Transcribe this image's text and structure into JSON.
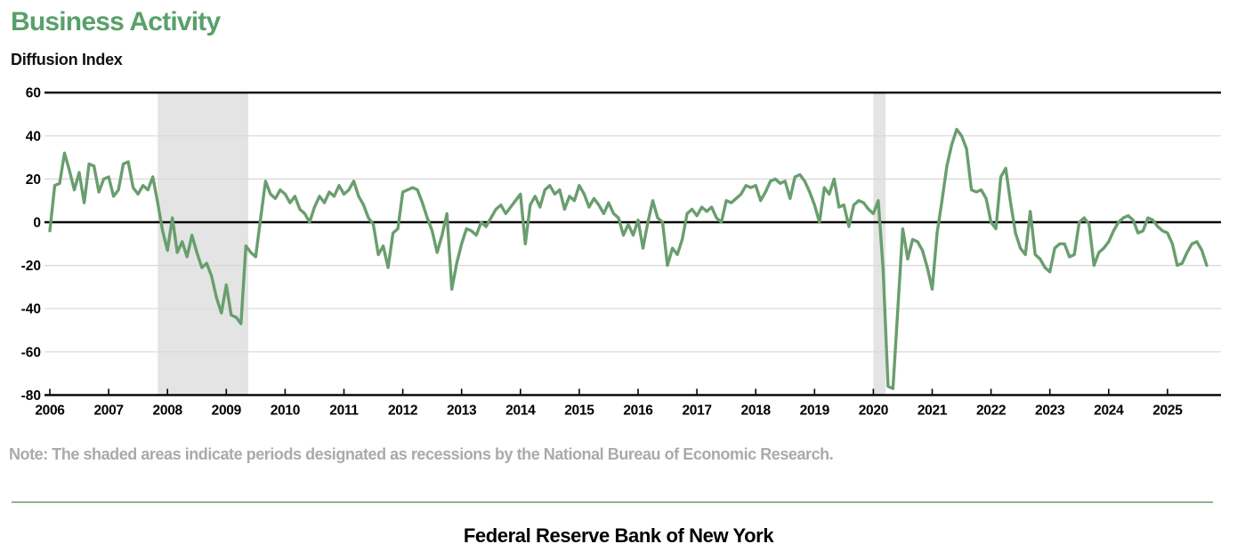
{
  "header": {
    "title": "Business Activity",
    "subtitle": "Diffusion Index"
  },
  "note": {
    "text": "Note: The shaded areas indicate periods designated as recessions by the National Bureau of Economic Research."
  },
  "footer": {
    "text": "Federal Reserve Bank of New York"
  },
  "chart_data": {
    "type": "line",
    "title": "Business Activity",
    "ylabel": "Diffusion Index",
    "frequency": "monthly",
    "x_start": "2006-01",
    "x_end": "2025-09",
    "ylim": [
      -80,
      60
    ],
    "y_ticks": [
      60,
      40,
      20,
      0,
      -20,
      -40,
      -60,
      -80
    ],
    "x_tick_years": [
      "2006",
      "2007",
      "2008",
      "2009",
      "2010",
      "2011",
      "2012",
      "2013",
      "2014",
      "2015",
      "2016",
      "2017",
      "2018",
      "2019",
      "2020",
      "2021",
      "2022",
      "2023",
      "2024",
      "2025"
    ],
    "grid": true,
    "legend": "none",
    "line_color": "#699e6e",
    "recession_band_color": "#e4e4e4",
    "grid_color": "#d8d8d8",
    "axis_color": "#000000",
    "recessions": [
      {
        "start": "2007-12",
        "end": "2009-06"
      },
      {
        "start": "2020-02",
        "end": "2020-04"
      }
    ],
    "values": [
      -4,
      17,
      18,
      32,
      24,
      15,
      23,
      9,
      27,
      26,
      14,
      20,
      21,
      12,
      15,
      27,
      28,
      16,
      13,
      17,
      15,
      21,
      9,
      -4,
      -13,
      2,
      -14,
      -9,
      -16,
      -6,
      -14,
      -21,
      -19,
      -25,
      -35,
      -42,
      -29,
      -43,
      -44,
      -47,
      -11,
      -14,
      -16,
      2,
      19,
      13,
      11,
      15,
      13,
      9,
      12,
      6,
      4,
      0,
      7,
      12,
      9,
      14,
      12,
      17,
      13,
      15,
      19,
      12,
      8,
      2,
      -1,
      -15,
      -11,
      -21,
      -5,
      -3,
      14,
      15,
      16,
      15,
      9,
      2,
      -4,
      -14,
      -6,
      4,
      -31,
      -19,
      -10,
      -3,
      -4,
      -6,
      0,
      -2,
      2,
      6,
      8,
      4,
      7,
      10,
      13,
      -10,
      8,
      12,
      7,
      15,
      17,
      13,
      15,
      6,
      12,
      10,
      17,
      13,
      7,
      11,
      8,
      4,
      9,
      4,
      2,
      -6,
      -1,
      -6,
      1,
      -12,
      0,
      10,
      2,
      0,
      -20,
      -12,
      -15,
      -8,
      4,
      6,
      3,
      7,
      5,
      7,
      2,
      0,
      10,
      9,
      11,
      13,
      17,
      16,
      17,
      10,
      14,
      19,
      20,
      18,
      19,
      11,
      21,
      22,
      19,
      14,
      8,
      0,
      16,
      13,
      20,
      7,
      8,
      -2,
      8,
      10,
      9,
      6,
      4,
      10,
      -22,
      -76,
      -77,
      -40,
      -3,
      -17,
      -8,
      -9,
      -13,
      -21,
      -31,
      -5,
      10,
      26,
      36,
      43,
      40,
      34,
      15,
      14,
      15,
      11,
      0,
      -3,
      21,
      25,
      9,
      -5,
      -12,
      -15,
      5,
      -15,
      -17,
      -21,
      -23,
      -12,
      -10,
      -10,
      -16,
      -15,
      0,
      2,
      -1,
      -20,
      -14,
      -12,
      -9,
      -4,
      0,
      2,
      3,
      1,
      -5,
      -4,
      2,
      1,
      -2,
      -4,
      -5,
      -10,
      -20,
      -19,
      -14,
      -10,
      -9,
      -13,
      -20
    ]
  }
}
